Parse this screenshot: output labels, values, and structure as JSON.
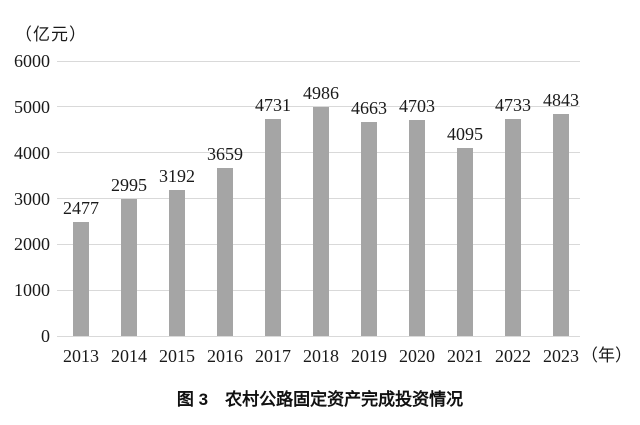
{
  "chart_data": {
    "type": "bar",
    "title": "图 3　农村公路固定资产完成投资情况",
    "unit_label": "（亿元）",
    "x_unit_label": "（年）",
    "categories": [
      "2013",
      "2014",
      "2015",
      "2016",
      "2017",
      "2018",
      "2019",
      "2020",
      "2021",
      "2022",
      "2023"
    ],
    "values": [
      2477,
      2995,
      3192,
      3659,
      4731,
      4986,
      4663,
      4703,
      4095,
      4733,
      4843
    ],
    "xlabel": "",
    "ylabel": "",
    "ylim": [
      0,
      6000
    ],
    "ytick_step": 1000,
    "grid": true,
    "legend": "none",
    "colors": {
      "bar": "#a5a5a5",
      "gridline": "#d9d9d9",
      "text": "#1a1a1a"
    }
  }
}
